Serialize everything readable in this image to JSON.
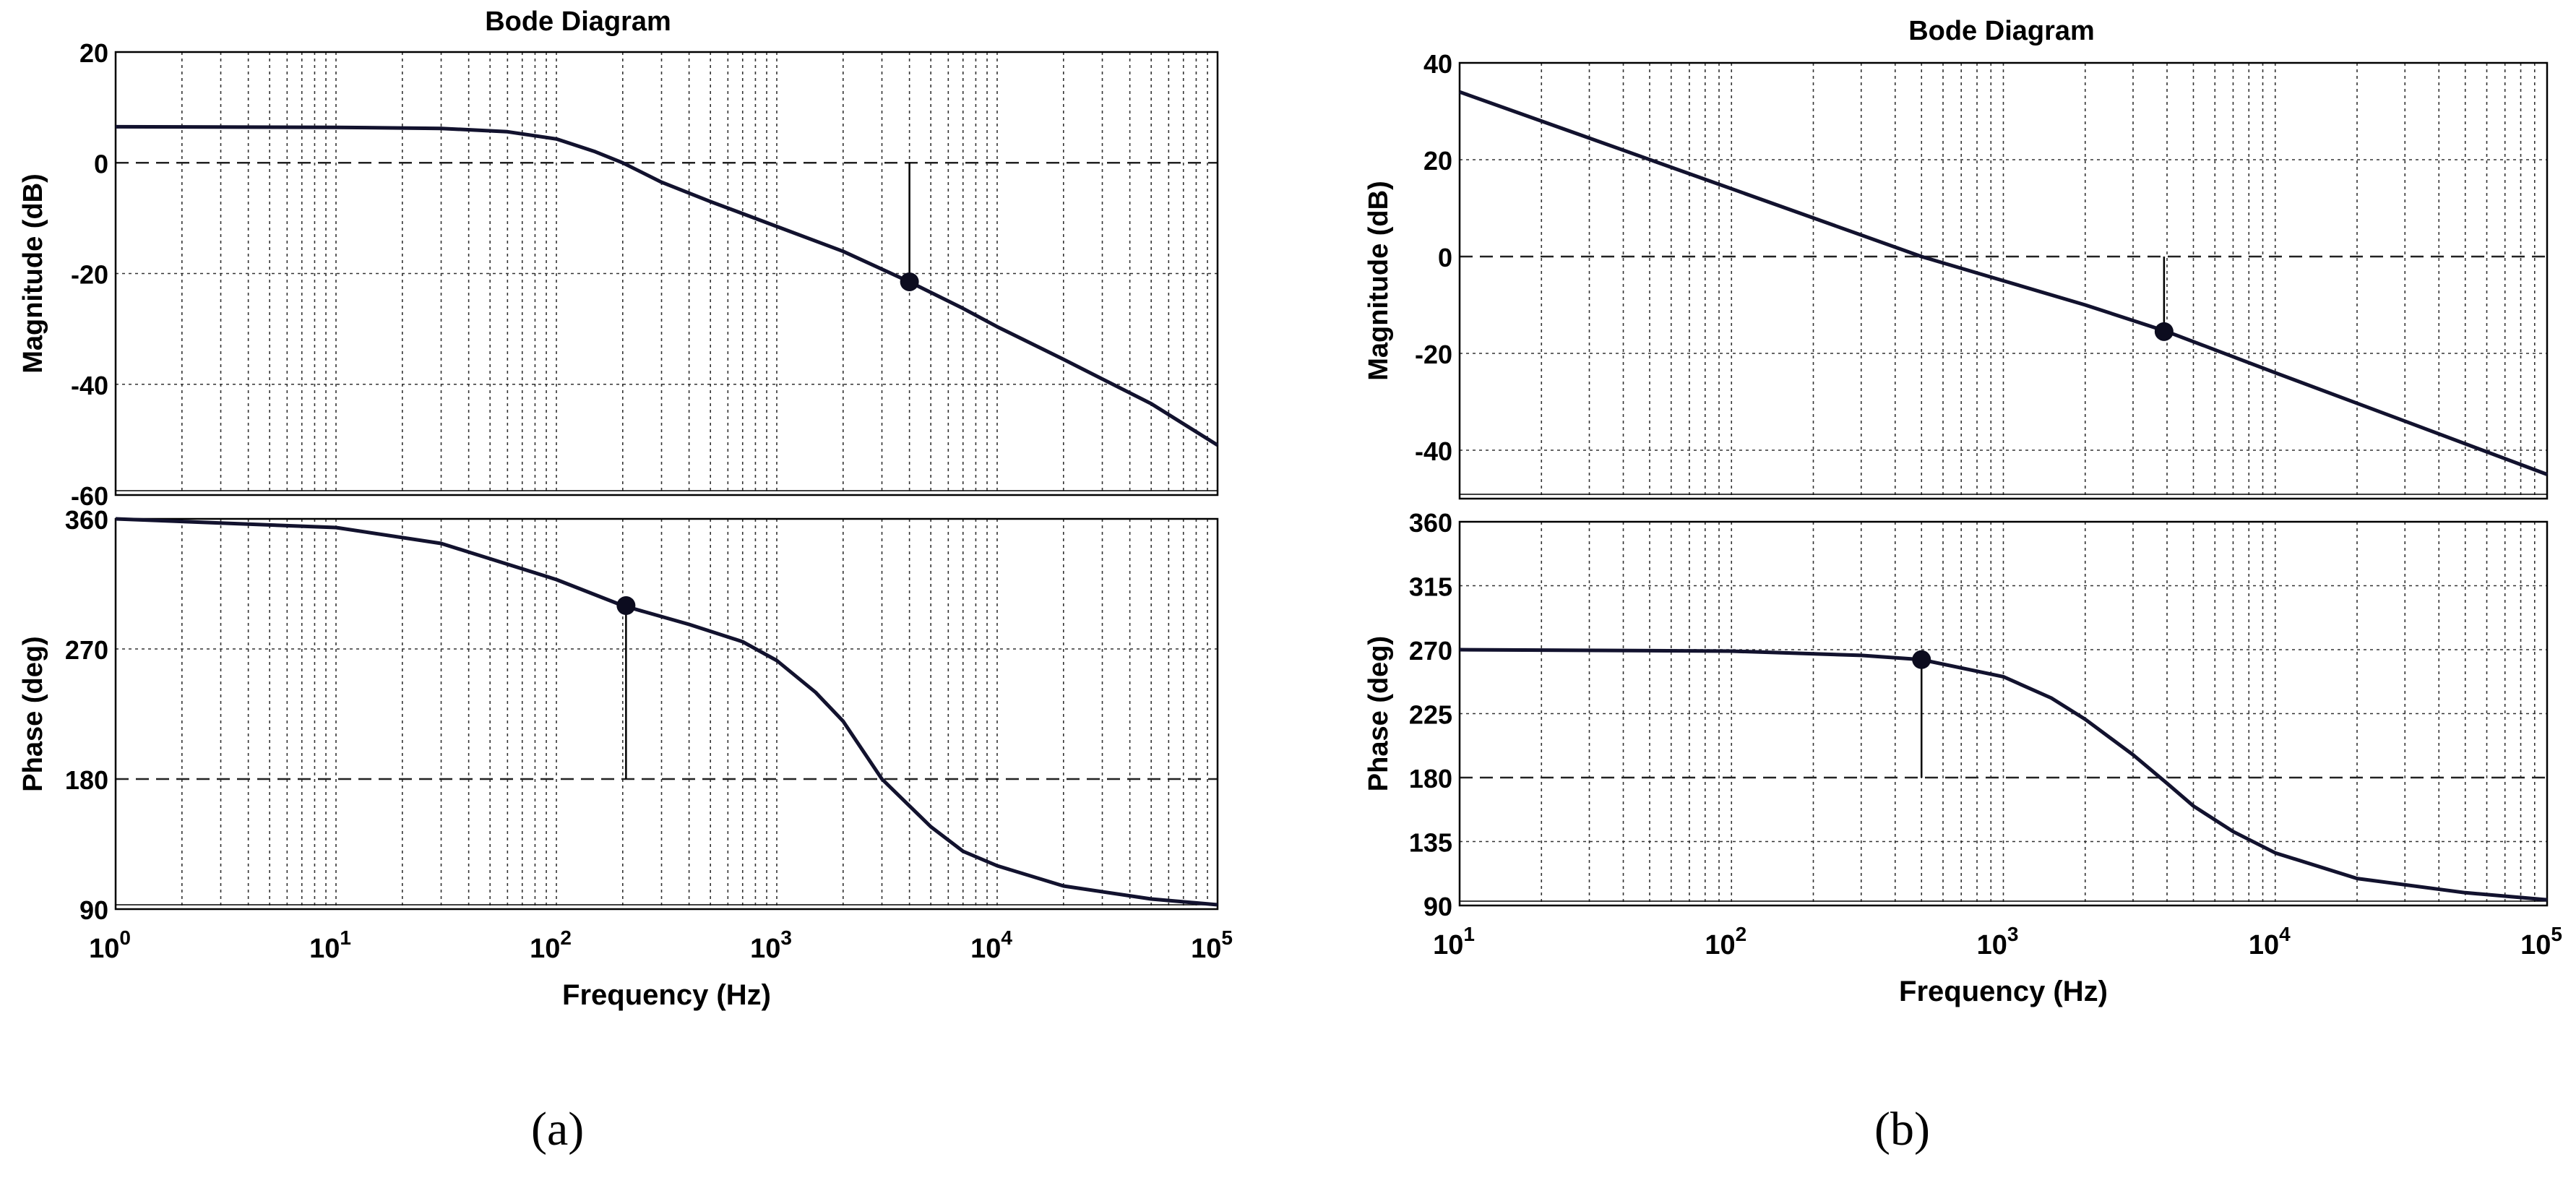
{
  "panels": [
    {
      "caption": "(a)",
      "title": "Bode Diagram",
      "xlabel": "Frequency (Hz)",
      "x_ticks": [
        {
          "base": "10",
          "exp": "0"
        },
        {
          "base": "10",
          "exp": "1"
        },
        {
          "base": "10",
          "exp": "2"
        },
        {
          "base": "10",
          "exp": "3"
        },
        {
          "base": "10",
          "exp": "4"
        },
        {
          "base": "10",
          "exp": "5"
        }
      ],
      "mag_ylabel": "Magnitude (dB)",
      "mag_ticks": [
        "20",
        "0",
        "-20",
        "-40",
        "-60"
      ],
      "phase_ylabel": "Phase (deg)",
      "phase_ticks": [
        "360",
        "270",
        "180",
        "90"
      ]
    },
    {
      "caption": "(b)",
      "title": "Bode Diagram",
      "xlabel": "Frequency (Hz)",
      "x_ticks": [
        {
          "base": "10",
          "exp": "1"
        },
        {
          "base": "10",
          "exp": "2"
        },
        {
          "base": "10",
          "exp": "3"
        },
        {
          "base": "10",
          "exp": "4"
        },
        {
          "base": "10",
          "exp": "5"
        }
      ],
      "mag_ylabel": "Magnitude (dB)",
      "mag_ticks": [
        "40",
        "20",
        "0",
        "-20",
        "-40"
      ],
      "phase_ylabel": "Phase (deg)",
      "phase_ticks": [
        "360",
        "315",
        "270",
        "225",
        "180",
        "135",
        "90"
      ]
    }
  ],
  "chart_data": [
    {
      "type": "line",
      "title": "Bode Diagram",
      "xlabel": "Frequency (Hz)",
      "ylabel": "Magnitude (dB)",
      "x_scale": "log",
      "xlim": [
        1,
        100000
      ],
      "ylim": [
        -60,
        20
      ],
      "yticks": [
        20,
        0,
        -20,
        -40,
        -60
      ],
      "grid": true,
      "series": [
        {
          "x": [
            1,
            10,
            30,
            60,
            100,
            150,
            200,
            300,
            500,
            1000,
            2000,
            4000,
            7000,
            10000,
            20000,
            50000,
            100000
          ],
          "y": [
            6.5,
            6.4,
            6.2,
            5.6,
            4.3,
            2.0,
            0,
            -3.5,
            -7.0,
            -11.5,
            -16.0,
            -21.5,
            -26.3,
            -29.6,
            -35.5,
            -43.5,
            -51.0
          ]
        }
      ],
      "markers": [
        {
          "x": 4000,
          "y": -21.5
        }
      ],
      "reference_lines": [
        {
          "y": 0
        }
      ]
    },
    {
      "type": "line",
      "title": "",
      "xlabel": "Frequency (Hz)",
      "ylabel": "Phase (deg)",
      "x_scale": "log",
      "xlim": [
        1,
        100000
      ],
      "ylim": [
        90,
        360
      ],
      "yticks": [
        360,
        270,
        180,
        90
      ],
      "grid": true,
      "series": [
        {
          "x": [
            1,
            10,
            30,
            100,
            200,
            400,
            700,
            1000,
            1500,
            2000,
            3000,
            5000,
            7000,
            10000,
            20000,
            50000,
            100000
          ],
          "y": [
            360,
            354,
            343,
            318,
            300,
            287,
            275,
            262,
            240,
            220,
            180,
            147,
            130,
            120,
            106,
            97,
            93
          ]
        }
      ],
      "markers": [
        {
          "x": 207,
          "y": 300
        }
      ],
      "reference_lines": [
        {
          "y": 180
        }
      ]
    },
    {
      "type": "line",
      "title": "Bode Diagram",
      "xlabel": "Frequency (Hz)",
      "ylabel": "Magnitude (dB)",
      "x_scale": "log",
      "xlim": [
        10,
        100000
      ],
      "ylim": [
        -50,
        40
      ],
      "yticks": [
        40,
        20,
        0,
        -20,
        -40
      ],
      "grid": true,
      "series": [
        {
          "x": [
            10,
            100,
            500,
            1000,
            2000,
            4000,
            10000,
            30000,
            100000
          ],
          "y": [
            34,
            14,
            0,
            -5,
            -10,
            -15.5,
            -24,
            -34,
            -45
          ]
        }
      ],
      "markers": [
        {
          "x": 3900,
          "y": -15.5
        }
      ],
      "reference_lines": [
        {
          "y": 0
        }
      ]
    },
    {
      "type": "line",
      "title": "",
      "xlabel": "Frequency (Hz)",
      "ylabel": "Phase (deg)",
      "x_scale": "log",
      "xlim": [
        10,
        100000
      ],
      "ylim": [
        90,
        360
      ],
      "yticks": [
        360,
        315,
        270,
        225,
        180,
        135,
        90
      ],
      "grid": true,
      "series": [
        {
          "x": [
            10,
            100,
            300,
            500,
            1000,
            1500,
            2000,
            3000,
            4000,
            5000,
            7000,
            10000,
            20000,
            50000,
            100000
          ],
          "y": [
            270,
            269,
            266,
            263,
            251,
            236,
            221,
            196,
            176,
            160,
            142,
            127,
            109,
            99,
            94
          ]
        }
      ],
      "markers": [
        {
          "x": 500,
          "y": 263
        }
      ],
      "reference_lines": [
        {
          "y": 180
        }
      ]
    }
  ]
}
